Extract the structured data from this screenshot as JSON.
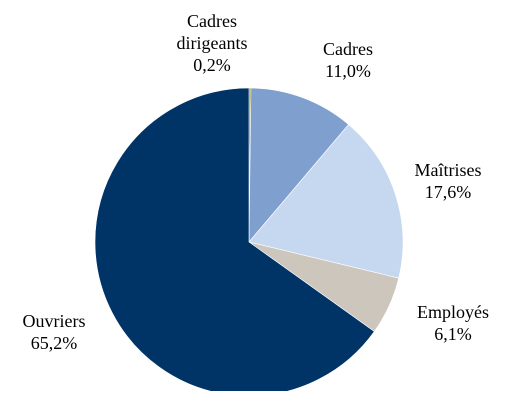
{
  "chart_data": {
    "type": "pie",
    "title": "",
    "start": "12 o'clock",
    "direction": "clockwise",
    "legend": "none",
    "slices": [
      {
        "label": [
          "Cadres",
          "dirigeants"
        ],
        "value": 0.2,
        "value_text": "0,2%",
        "color": "#8a8a2a"
      },
      {
        "label": [
          "Cadres"
        ],
        "value": 11.0,
        "value_text": "11,0%",
        "color": "#7f9fcf"
      },
      {
        "label": [
          "Maîtrises"
        ],
        "value": 17.6,
        "value_text": "17,6%",
        "color": "#c6d8f0"
      },
      {
        "label": [
          "Employés"
        ],
        "value": 6.1,
        "value_text": "6,1%",
        "color": "#ccc6bc"
      },
      {
        "label": [
          "Ouvriers"
        ],
        "value": 65.2,
        "value_text": "65,2%",
        "color": "#003366"
      }
    ]
  }
}
